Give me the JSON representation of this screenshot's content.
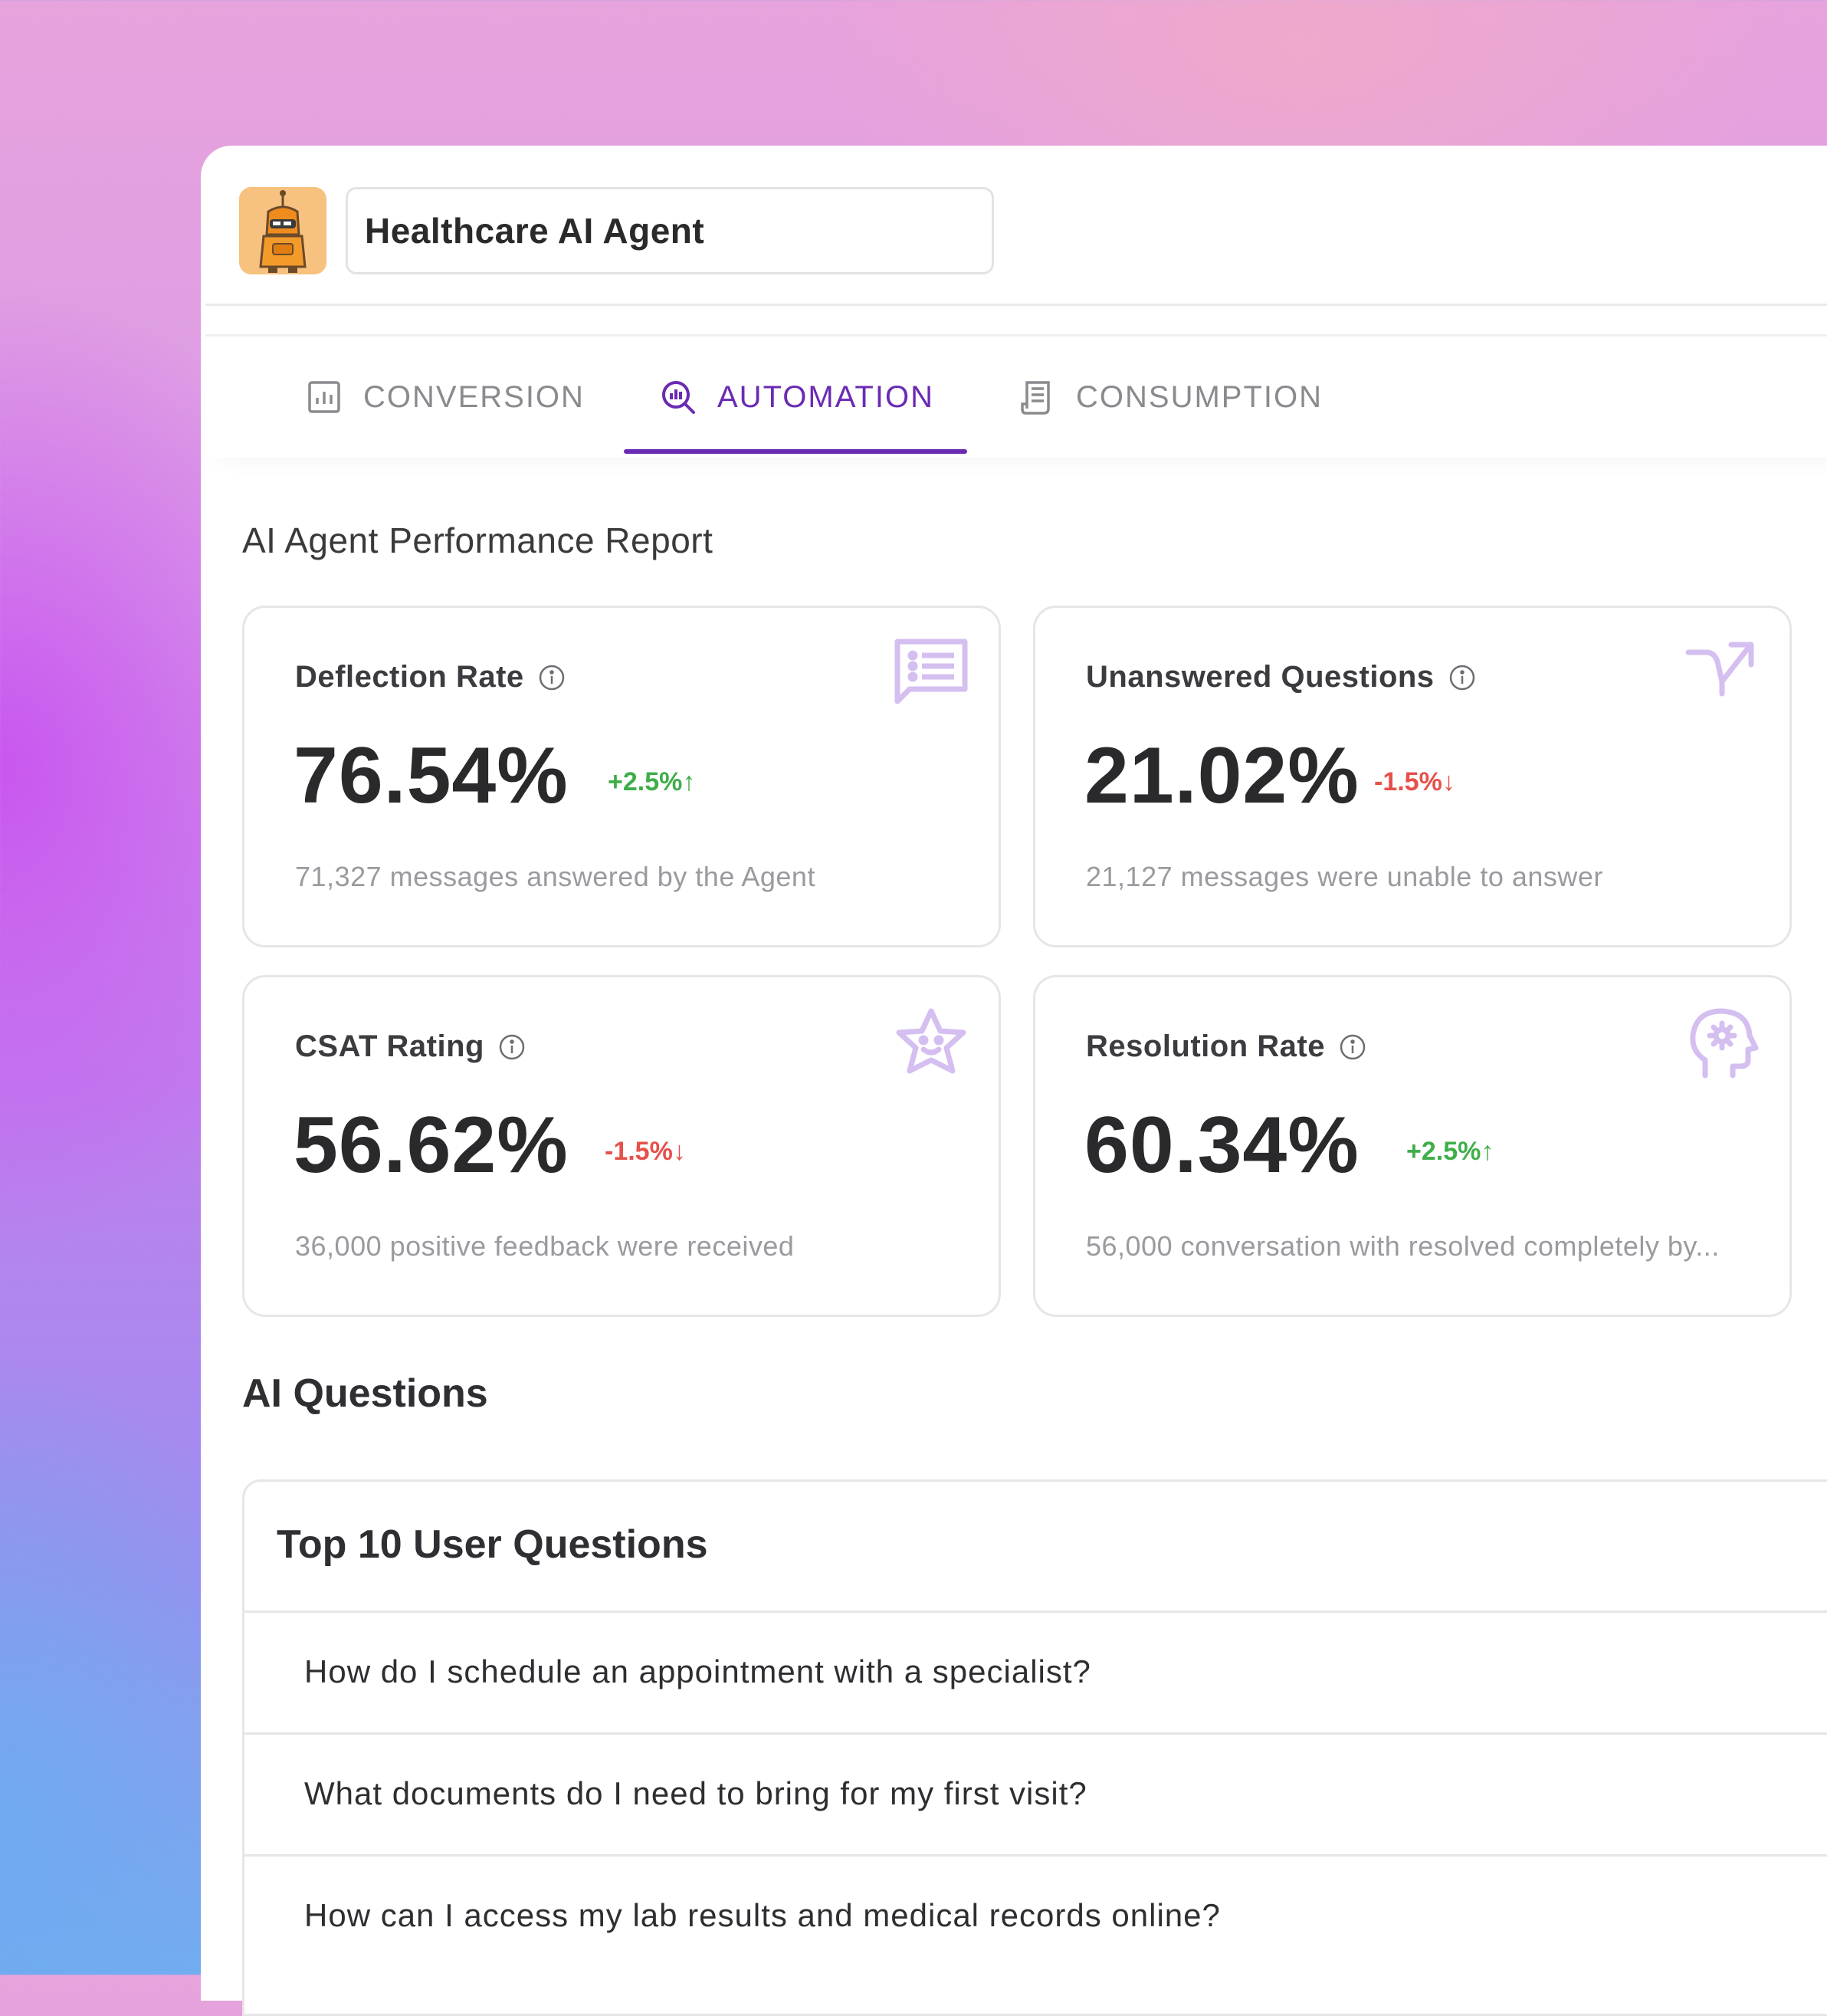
{
  "header": {
    "agent_name": "Healthcare AI Agent",
    "avatar_icon": "robot-avatar-icon"
  },
  "tabs": [
    {
      "label": "CONVERSION",
      "icon": "bar-chart-icon",
      "active": false
    },
    {
      "label": "AUTOMATION",
      "icon": "search-analytics-icon",
      "active": true
    },
    {
      "label": "CONSUMPTION",
      "icon": "receipt-icon",
      "active": false
    }
  ],
  "report": {
    "title": "AI Agent Performance Report",
    "cards": [
      {
        "label": "Deflection Rate",
        "value": "76.54%",
        "delta": "+2.5%↑",
        "trend": "up",
        "sub": "71,327 messages answered by the Agent",
        "icon": "message-list-icon"
      },
      {
        "label": "Unanswered Questions",
        "value": "21.02%",
        "delta": "-1.5%↓",
        "trend": "down",
        "sub": "21,127 messages were unable to answer",
        "icon": "split-arrow-icon"
      },
      {
        "label": "CSAT Rating",
        "value": "56.62%",
        "delta": "-1.5%↓",
        "trend": "down",
        "sub": "36,000 positive feedback were received",
        "icon": "smiley-star-icon"
      },
      {
        "label": "Resolution Rate",
        "value": "60.34%",
        "delta": "+2.5%↑",
        "trend": "up",
        "sub": "56,000 conversation with resolved completely by...",
        "icon": "head-gear-icon"
      }
    ]
  },
  "questions": {
    "heading": "AI Questions",
    "box_title": "Top 10 User Questions",
    "items": [
      "How do I schedule an appointment with a specialist?",
      "What documents do I need to bring for my first visit?",
      "How can I access my lab results and medical records online?"
    ]
  },
  "colors": {
    "accent": "#6a2bb3",
    "icon_tint": "#d4bff0",
    "positive": "#3fae49",
    "negative": "#e6504a"
  }
}
